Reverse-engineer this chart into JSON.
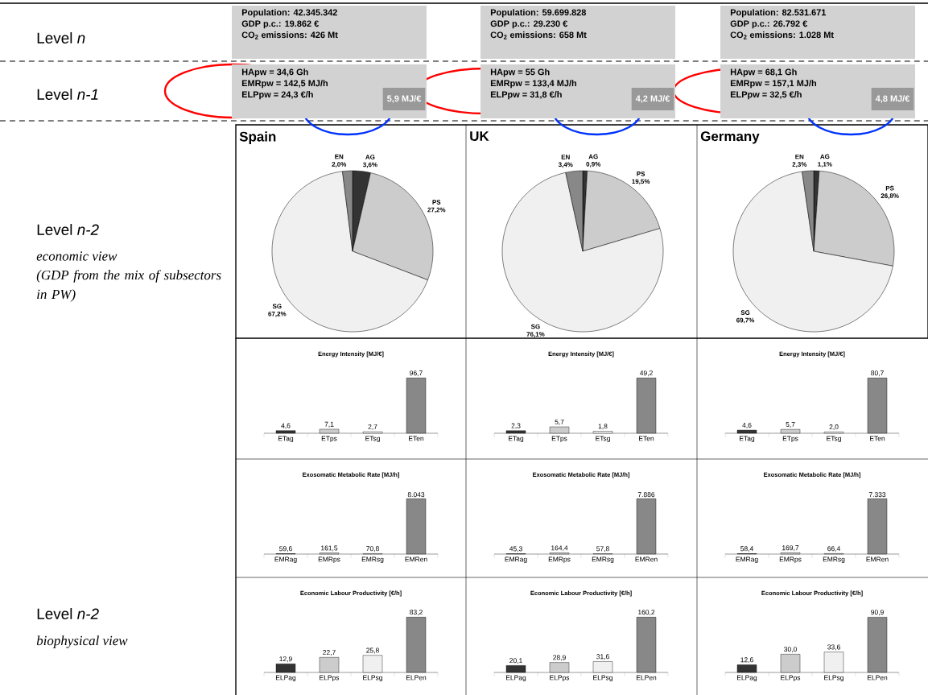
{
  "chart_data": [
    {
      "type": "other",
      "annotations": [
        "Level *n*",
        "Level *n-1*",
        "Level *n-2*",
        "economic view",
        "(GDP from the mix of subsectors in PW)",
        "Level *n-2*",
        "biophysical view"
      ]
    },
    {
      "type": "other",
      "annotations": [
        "Population: 42.345.342",
        "GDP p.c.: 19.862 €",
        "CO$_{2}$ emissions: 426 Mt",
        "HApw = 34,6 Gh",
        "EMRpw = 142,5 MJ/h",
        "ELPpw = 24,3 €/h",
        "5,9 MJ/€"
      ]
    },
    {
      "type": "other",
      "annotations": [
        "Population: 59.699.828",
        "GDP p.c.: 29.230 €",
        "CO$_{2}$ emissions: 658 Mt",
        "HApw = 55 Gh",
        "EMRpw = 133,4 MJ/h",
        "ELPpw = 31,8 €/h",
        "4,2 MJ/€"
      ]
    },
    {
      "type": "other",
      "annotations": [
        "Population: 82.531.671",
        "GDP p.c.: 26.792 €",
        "CO$_{2}$ emissions: 1.028 Mt",
        "HApw = 68,1 Gh",
        "EMRpw = 157,1 MJ/h",
        "ELPpw = 32,5 €/h",
        "4,8 MJ/€"
      ]
    },
    {
      "type": "pie",
      "title": "Spain",
      "categories": [
        "AG",
        "PS",
        "SG",
        "EN"
      ],
      "values": [
        3.6,
        27.2,
        67.2,
        2.0
      ],
      "value_labels": [
        "3,6%",
        "27,2%",
        "67,2%",
        "2,0%"
      ],
      "colors": [
        "#333333",
        "#cccccc",
        "#f0f0f0",
        "#888888"
      ]
    },
    {
      "type": "pie",
      "title": "UK",
      "categories": [
        "AG",
        "PS",
        "SG",
        "EN"
      ],
      "values": [
        0.9,
        19.5,
        76.1,
        3.4
      ],
      "value_labels": [
        "0,9%",
        "19,5%",
        "76,1%",
        "3,4%"
      ],
      "colors": [
        "#333333",
        "#cccccc",
        "#f0f0f0",
        "#888888"
      ]
    },
    {
      "type": "pie",
      "title": "Germany",
      "categories": [
        "AG",
        "PS",
        "SG",
        "EN"
      ],
      "values": [
        1.1,
        26.8,
        69.7,
        2.3
      ],
      "value_labels": [
        "1,1%",
        "26,8%",
        "69,7%",
        "2,3%"
      ],
      "colors": [
        "#333333",
        "#cccccc",
        "#f0f0f0",
        "#888888"
      ]
    },
    {
      "type": "bar",
      "title": "Energy Intensity [MJ/€]",
      "categories": [
        "ETag",
        "ETps",
        "ETsg",
        "ETen"
      ],
      "values": [
        4.6,
        7.1,
        2.7,
        96.7
      ],
      "value_labels": [
        "4,6",
        "7,1",
        "2,7",
        "96,7"
      ],
      "colors": [
        "#333333",
        "#cccccc",
        "#f0f0f0",
        "#888888"
      ]
    },
    {
      "type": "bar",
      "title": "Energy Intensity [MJ/€]",
      "categories": [
        "ETag",
        "ETps",
        "ETsg",
        "ETen"
      ],
      "values": [
        2.3,
        5.7,
        1.8,
        49.2
      ],
      "value_labels": [
        "2,3",
        "5,7",
        "1,8",
        "49,2"
      ],
      "colors": [
        "#333333",
        "#cccccc",
        "#f0f0f0",
        "#888888"
      ]
    },
    {
      "type": "bar",
      "title": "Energy Intensity [MJ/€]",
      "categories": [
        "ETag",
        "ETps",
        "ETsg",
        "ETen"
      ],
      "values": [
        4.6,
        5.7,
        2.0,
        80.7
      ],
      "value_labels": [
        "4,6",
        "5,7",
        "2,0",
        "80,7"
      ],
      "colors": [
        "#333333",
        "#cccccc",
        "#f0f0f0",
        "#888888"
      ]
    },
    {
      "type": "bar",
      "title": "Exosomatic Metabolic Rate [MJ/h]",
      "categories": [
        "EMRag",
        "EMRps",
        "EMRsg",
        "EMRen"
      ],
      "values": [
        59.6,
        161.5,
        70.8,
        8043
      ],
      "value_labels": [
        "59,6",
        "161,5",
        "70,8",
        "8.043"
      ],
      "colors": [
        "#333333",
        "#cccccc",
        "#f0f0f0",
        "#888888"
      ]
    },
    {
      "type": "bar",
      "title": "Exosomatic Metabolic Rate [MJ/h]",
      "categories": [
        "EMRag",
        "EMRps",
        "EMRsg",
        "EMRen"
      ],
      "values": [
        45.3,
        164.4,
        57.8,
        7886
      ],
      "value_labels": [
        "45,3",
        "164,4",
        "57,8",
        "7.886"
      ],
      "colors": [
        "#333333",
        "#cccccc",
        "#f0f0f0",
        "#888888"
      ]
    },
    {
      "type": "bar",
      "title": "Exosomatic Metabolic Rate [MJ/h]",
      "categories": [
        "EMRag",
        "EMRps",
        "EMRsg",
        "EMRen"
      ],
      "values": [
        58.4,
        169.7,
        66.4,
        7333
      ],
      "value_labels": [
        "58,4",
        "169,7",
        "66,4",
        "7.333"
      ],
      "colors": [
        "#333333",
        "#cccccc",
        "#f0f0f0",
        "#888888"
      ]
    },
    {
      "type": "bar",
      "title": "Economic Labour Productivity [€/h]",
      "categories": [
        "ELPag",
        "ELPps",
        "ELPsg",
        "ELPen"
      ],
      "values": [
        12.9,
        22.7,
        25.8,
        83.2
      ],
      "value_labels": [
        "12,9",
        "22,7",
        "25,8",
        "83,2"
      ],
      "colors": [
        "#333333",
        "#cccccc",
        "#f0f0f0",
        "#888888"
      ]
    },
    {
      "type": "bar",
      "title": "Economic Labour Productivity [€/h]",
      "categories": [
        "ELPag",
        "ELPps",
        "ELPsg",
        "ELPen"
      ],
      "values": [
        20.1,
        28.9,
        31.6,
        160.2
      ],
      "value_labels": [
        "20,1",
        "28,9",
        "31,6",
        "160,2"
      ],
      "colors": [
        "#333333",
        "#cccccc",
        "#f0f0f0",
        "#888888"
      ]
    },
    {
      "type": "bar",
      "title": "Economic Labour Productivity [€/h]",
      "categories": [
        "ELPag",
        "ELPps",
        "ELPsg",
        "ELPen"
      ],
      "values": [
        12.6,
        30.0,
        33.6,
        90.9
      ],
      "value_labels": [
        "12,6",
        "30,0",
        "33,6",
        "90,9"
      ],
      "colors": [
        "#333333",
        "#cccccc",
        "#f0f0f0",
        "#888888"
      ]
    }
  ]
}
